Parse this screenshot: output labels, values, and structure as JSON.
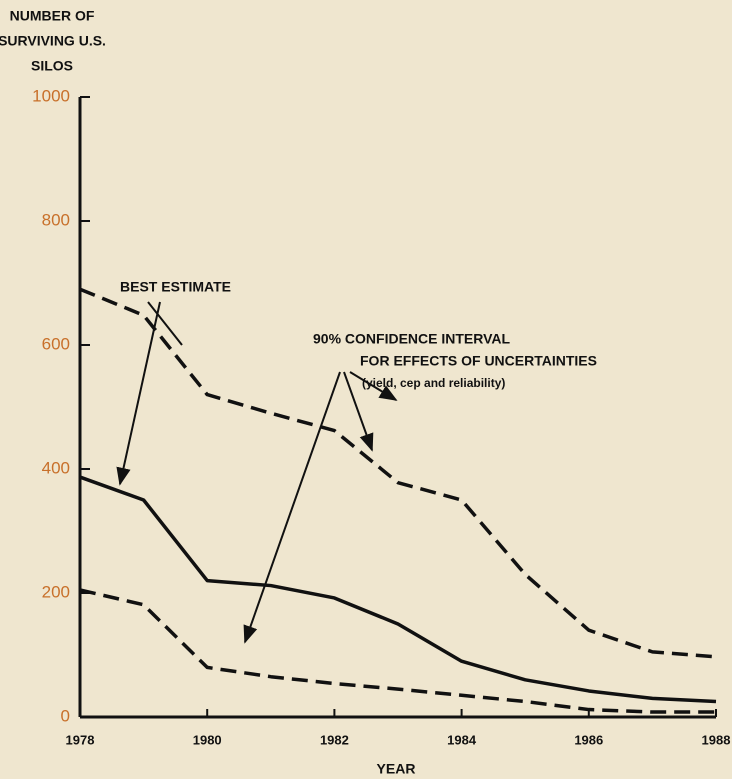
{
  "chart_data": {
    "type": "line",
    "y_axis_label": [
      "NUMBER OF",
      "SURVIVING U.S.",
      "SILOS"
    ],
    "x_axis_label": "YEAR",
    "annotations": [
      "BEST ESTIMATE",
      "90% CONFIDENCE INTERVAL",
      "FOR EFFECTS OF UNCERTAINTIES",
      "(yield, cep and reliability)"
    ],
    "x": [
      1978,
      1979,
      1980,
      1981,
      1982,
      1983,
      1984,
      1985,
      1986,
      1987,
      1988
    ],
    "series": [
      {
        "color": "#111111",
        "dashed": false,
        "values": [
          387,
          350,
          220,
          212,
          192,
          150,
          90,
          60,
          42,
          30,
          25
        ]
      },
      {
        "color": "#111111",
        "dashed": true,
        "values": [
          690,
          648,
          520,
          490,
          462,
          378,
          350,
          230,
          140,
          105,
          97
        ]
      },
      {
        "color": "#111111",
        "dashed": true,
        "values": [
          205,
          181,
          80,
          65,
          54,
          45,
          35,
          25,
          12,
          8,
          8
        ]
      }
    ],
    "xlim": [
      1978,
      1988
    ],
    "xticks": [
      1978,
      1980,
      1982,
      1984,
      1986,
      1988
    ],
    "ylim": [
      0,
      1000
    ],
    "yticks": [
      0,
      200,
      400,
      600,
      800,
      1000
    ]
  }
}
